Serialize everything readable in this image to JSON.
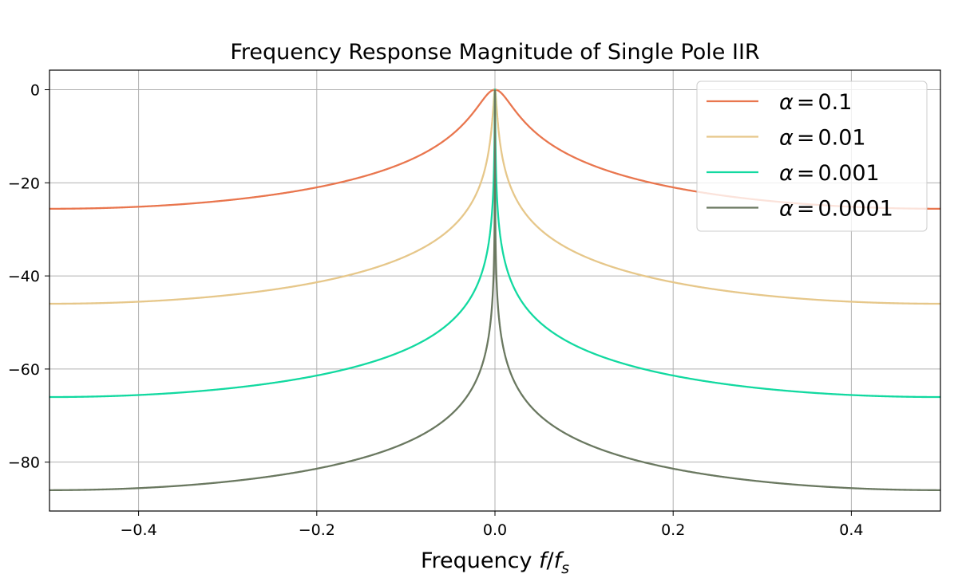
{
  "chart_data": {
    "type": "line",
    "title": "Frequency Response Magnitude of Single Pole IIR",
    "xlabel": "Frequency f/f_s",
    "xlabel_parts": {
      "prefix": "Frequency ",
      "f": "f",
      "slash": "/",
      "fs": "f",
      "sub": "s"
    },
    "ylabel": "",
    "xlim": [
      -0.5,
      0.5
    ],
    "ylim": [
      -90.5,
      4.2
    ],
    "xticks": [
      -0.4,
      -0.2,
      0.0,
      0.2,
      0.4
    ],
    "xtick_labels": [
      "−0.4",
      "−0.2",
      "0.0",
      "0.2",
      "0.4"
    ],
    "yticks": [
      0,
      -20,
      -40,
      -60,
      -80
    ],
    "ytick_labels": [
      "0",
      "−20",
      "−40",
      "−60",
      "−80"
    ],
    "grid": true,
    "legend_position": "top-right",
    "model": "H(f) = alpha / (1 - (1 - alpha) e^{-j 2 pi f}), magnitude in dB",
    "series": [
      {
        "name": "α = 0.1",
        "alpha_sym": "α",
        "eq": "=",
        "value_label": "0.1",
        "alpha": 0.1,
        "color": "#E9764E",
        "value_at_edge_db": -25.6
      },
      {
        "name": "α = 0.01",
        "alpha_sym": "α",
        "eq": "=",
        "value_label": "0.01",
        "alpha": 0.01,
        "color": "#E6C78A",
        "value_at_edge_db": -46.0
      },
      {
        "name": "α = 0.001",
        "alpha_sym": "α",
        "eq": "=",
        "value_label": "0.001",
        "alpha": 0.001,
        "color": "#12D9A0",
        "value_at_edge_db": -66.0
      },
      {
        "name": "α = 0.0001",
        "alpha_sym": "α",
        "eq": "=",
        "value_label": "0.0001",
        "alpha": 0.0001,
        "color": "#6A7860",
        "value_at_edge_db": -86.0
      }
    ]
  }
}
